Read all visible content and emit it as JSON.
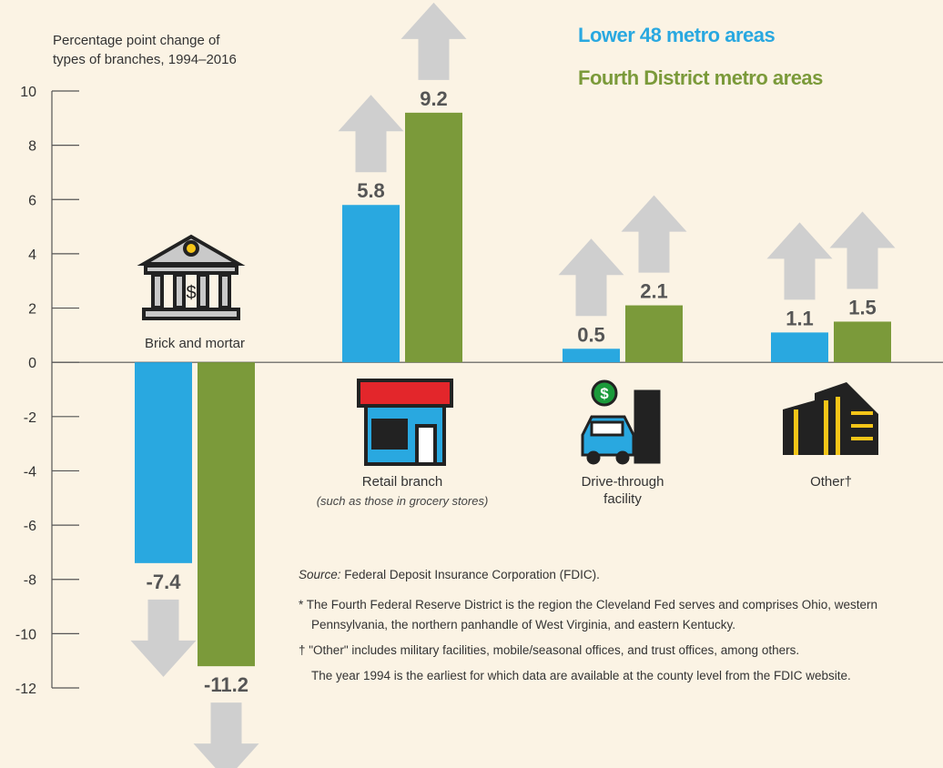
{
  "chart_data": {
    "type": "bar",
    "y_label": [
      "Percentage point change of",
      "types of branches, 1994–2016"
    ],
    "categories": [
      "Brick and mortar",
      "Retail branch",
      "Drive-through facility",
      "Other†"
    ],
    "category_notes": [
      null,
      "(such as those in grocery stores)",
      null,
      null
    ],
    "series": [
      {
        "name": "Lower 48 metro areas",
        "color": "#29a8e0",
        "values": [
          -7.4,
          5.8,
          0.5,
          1.1
        ]
      },
      {
        "name": "Fourth District metro areas",
        "color": "#7b9a3a",
        "values": [
          -11.2,
          9.2,
          2.1,
          1.5
        ]
      }
    ],
    "ylim": [
      -12,
      10
    ],
    "yticks": [
      10,
      8,
      6,
      4,
      2,
      0,
      -2,
      -4,
      -6,
      -8,
      -10,
      -12
    ],
    "source_label": "Source:",
    "source": "Federal Deposit Insurance Corporation (FDIC).",
    "footnotes": [
      "* The Fourth Federal Reserve District is the region the Cleveland Fed serves and comprises Ohio, western Pennsylvania, the northern panhandle of West Virginia, and eastern Kentucky.",
      "† \"Other\" includes military facilities, mobile/seasonal offices, and trust offices, among others.",
      "The year 1994 is the earliest for which data are available at the county level from the FDIC website."
    ]
  }
}
